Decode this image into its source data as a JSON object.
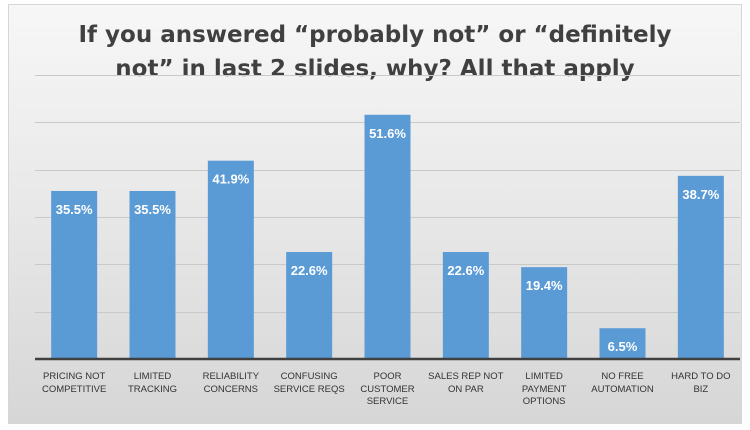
{
  "chart_data": {
    "type": "bar",
    "title_lines": [
      "If you answered “probably not” or “definitely",
      "not” in last 2 slides, why? All that apply"
    ],
    "categories": [
      [
        "PRICING NOT",
        "COMPETITIVE"
      ],
      [
        "LIMITED",
        "TRACKING"
      ],
      [
        "RELIABILITY",
        "CONCERNS"
      ],
      [
        "CONFUSING",
        "SERVICE REQS"
      ],
      [
        "POOR",
        "CUSTOMER",
        "SERVICE"
      ],
      [
        "SALES REP NOT",
        "ON PAR"
      ],
      [
        "LIMITED",
        "PAYMENT",
        "OPTIONS"
      ],
      [
        "NO FREE",
        "AUTOMATION"
      ],
      [
        "HARD TO DO",
        "BIZ"
      ]
    ],
    "values": [
      35.5,
      35.5,
      41.9,
      22.6,
      51.6,
      22.6,
      19.4,
      6.5,
      38.7
    ],
    "data_labels": [
      "35.5%",
      "35.5%",
      "41.9%",
      "22.6%",
      "51.6%",
      "22.6%",
      "19.4%",
      "6.5%",
      "38.7%"
    ],
    "ylim": [
      0,
      60
    ],
    "grid": true,
    "bar_color": "#5b9bd5"
  }
}
